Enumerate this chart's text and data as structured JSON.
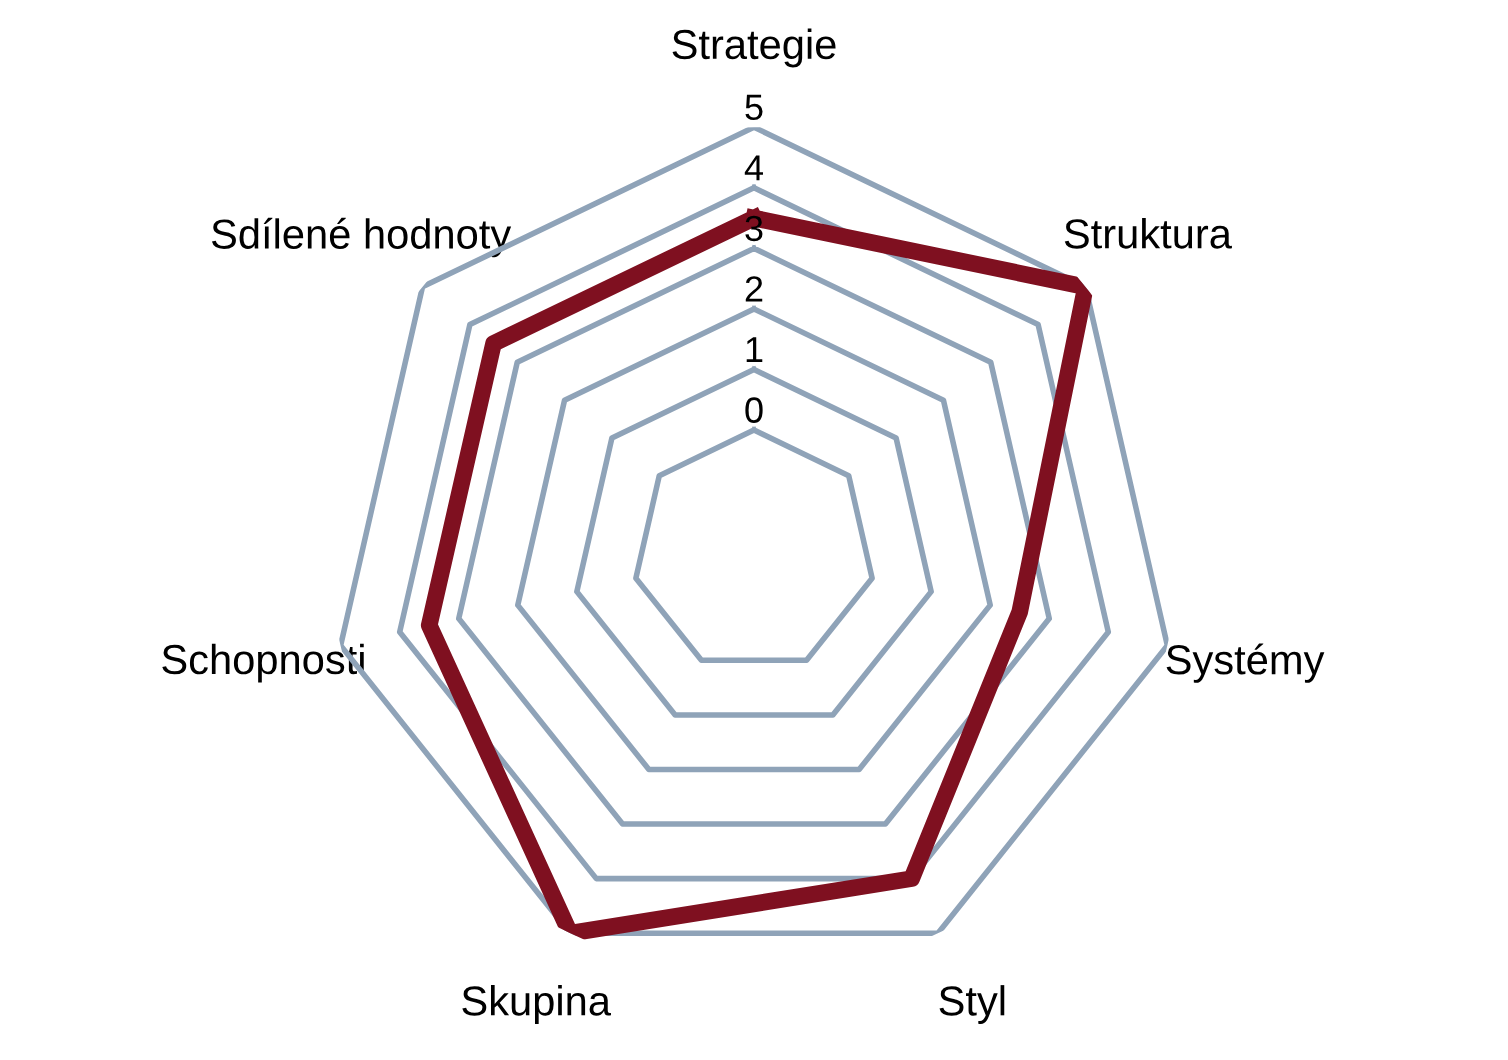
{
  "chart_data": {
    "type": "radar",
    "categories": [
      "Strategie",
      "Struktura",
      "Systémy",
      "Styl",
      "Skupina",
      "Schopnosti",
      "Sdílené hodnoty"
    ],
    "series": [
      {
        "color": "#7f1020",
        "values": [
          3.5,
          5,
          2.5,
          4,
          5,
          3.5,
          3.5
        ]
      }
    ],
    "ylim": [
      -2,
      5
    ],
    "yticks": [
      0,
      1,
      2,
      3,
      4,
      5
    ],
    "grid": true,
    "marker": "none"
  }
}
